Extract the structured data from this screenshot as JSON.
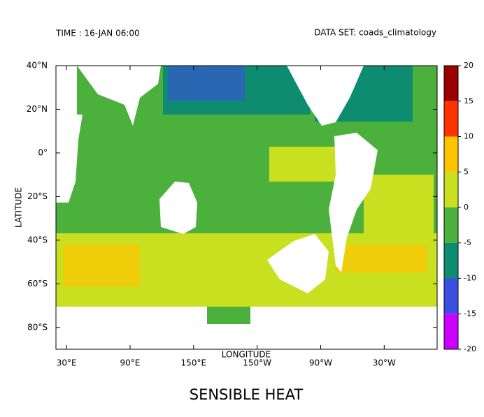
{
  "header": {
    "time": "TIME : 16-JAN 06:00",
    "dataset": "DATA SET: coads_climatology"
  },
  "title": "SENSIBLE HEAT",
  "map": {
    "x_label": "LONGITUDE",
    "y_label": "LATITUDE",
    "lon_ticks": [
      {
        "value": 30,
        "label": "30°E"
      },
      {
        "value": 90,
        "label": "90°E"
      },
      {
        "value": 150,
        "label": "150°E"
      },
      {
        "value": 210,
        "label": "150°W"
      },
      {
        "value": 270,
        "label": "90°W"
      },
      {
        "value": 330,
        "label": "30°W"
      }
    ],
    "lat_ticks": [
      {
        "value": 40,
        "label": "40°N"
      },
      {
        "value": 20,
        "label": "20°N"
      },
      {
        "value": 0,
        "label": "0°"
      },
      {
        "value": -20,
        "label": "20°S"
      },
      {
        "value": -40,
        "label": "40°S"
      },
      {
        "value": -60,
        "label": "60°S"
      },
      {
        "value": -80,
        "label": "80°S"
      }
    ],
    "xlim": [
      20,
      380
    ],
    "ylim": [
      -90,
      40
    ]
  },
  "colorbar": {
    "levels": [
      -20,
      -15,
      -10,
      -5,
      0,
      5,
      10,
      15,
      20
    ],
    "colors": [
      "#cc00ff",
      "#3c4ee0",
      "#0e8c70",
      "#4cb03c",
      "#c8e020",
      "#ffc400",
      "#ff3300",
      "#9a0000"
    ]
  }
}
